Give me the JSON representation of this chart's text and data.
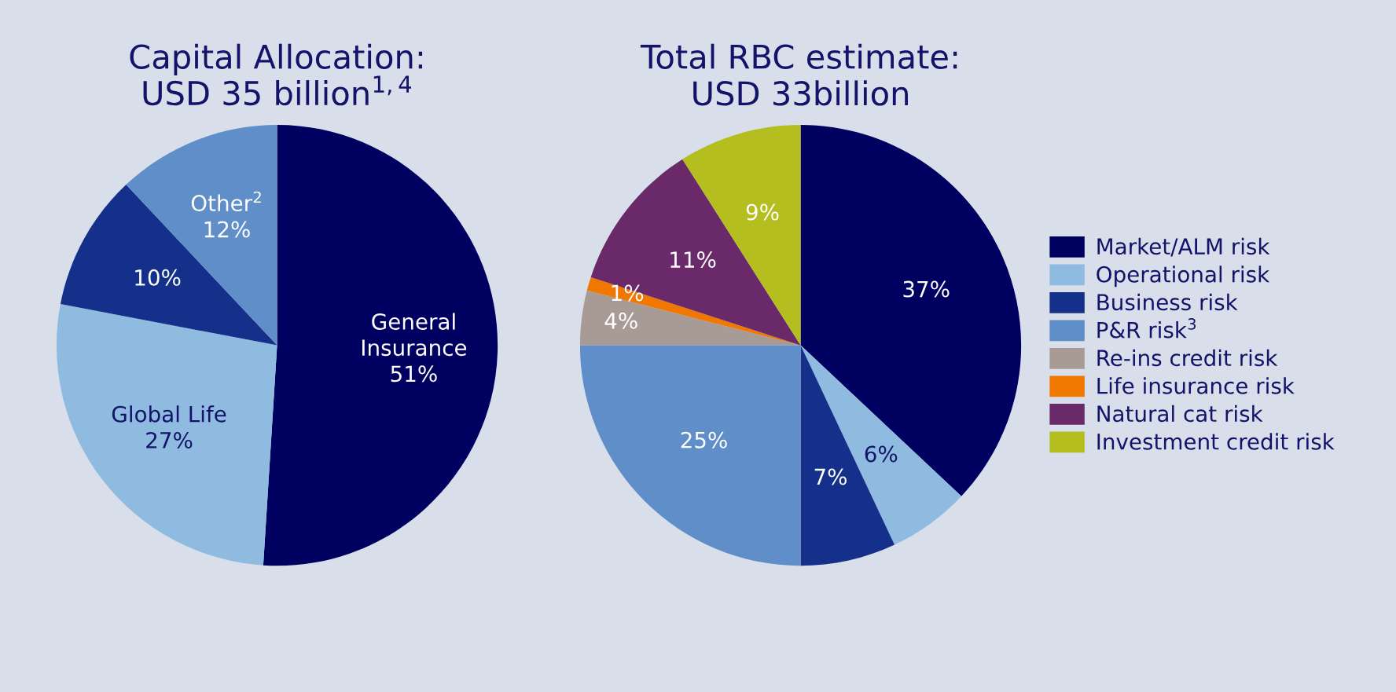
{
  "chart_data": [
    {
      "type": "pie",
      "title": "Capital Allocation:\nUSD 35 billion$^{1,4}$",
      "categories": [
        "General\nInsurance",
        "Global Life",
        null,
        "Other$^{2}$"
      ],
      "values": [
        51,
        27,
        10,
        12
      ],
      "value_labels": [
        "51%",
        "27%",
        "10%",
        "12%"
      ],
      "colors": [
        "#000060",
        "#8fbbe0",
        "#14308a",
        "#5f8ec8"
      ],
      "legend": false
    },
    {
      "type": "pie",
      "title": "Total RBC estimate:\nUSD 33billion",
      "categories": [
        "Market/ALM risk",
        "Operational risk",
        "Business risk",
        "P&R risk$^{3}$",
        "Re-ins credit risk",
        "Life insurance risk",
        "Natural cat risk",
        "Investment credit risk"
      ],
      "values": [
        37,
        6,
        7,
        25,
        4,
        1,
        11,
        9
      ],
      "value_labels": [
        "37%",
        "6%",
        "7%",
        "25%",
        "4%",
        "1%",
        "11%",
        "9%"
      ],
      "colors": [
        "#000060",
        "#8fbbe0",
        "#14308a",
        "#5f8ec8",
        "#a89a94",
        "#f07800",
        "#6a2a6a",
        "#b4be1e"
      ],
      "legend": "right"
    }
  ]
}
